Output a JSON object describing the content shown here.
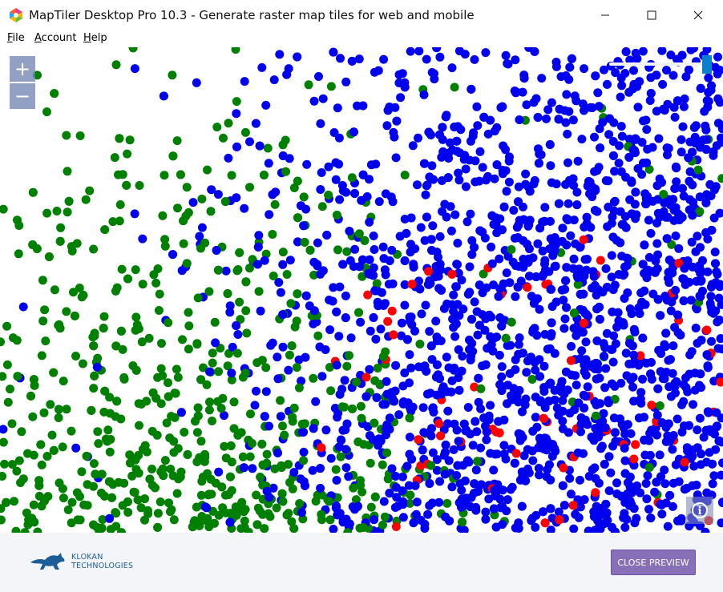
{
  "window": {
    "title": "MapTiler Desktop Pro 10.3 - Generate raster map tiles for web and mobile"
  },
  "menu": {
    "items": [
      {
        "label_first": "F",
        "label_rest": "ile"
      },
      {
        "label_first": "A",
        "label_rest": "ccount"
      },
      {
        "label_first": "H",
        "label_rest": "elp"
      }
    ]
  },
  "map": {
    "zoom_in": "+",
    "zoom_out": "−",
    "opacity_value": 1.0,
    "point_colors": {
      "blue": "#0000ee",
      "green": "#008000",
      "red": "#ff0000"
    }
  },
  "info_icon": "i",
  "footer": {
    "logo_line1": "KLOKAN",
    "logo_line2": "TECHNOLOGIES",
    "close_label": "CLOSE PREVIEW"
  },
  "colors": {
    "accent_button": "#8870b8",
    "logo": "#1b5d96"
  }
}
